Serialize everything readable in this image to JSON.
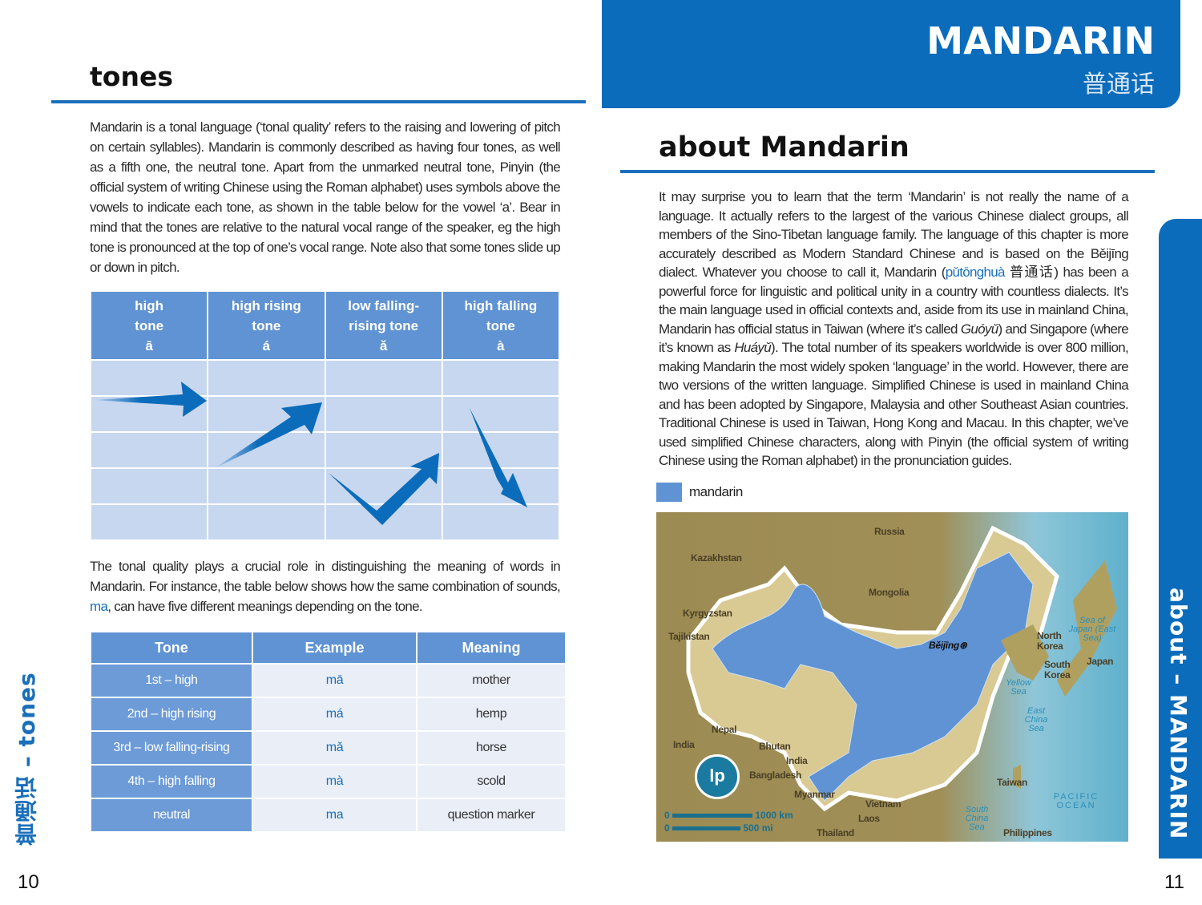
{
  "left_page": {
    "title": "tones",
    "intro": "Mandarin is a tonal language (‘tonal quality’ refers to the raising and lowering of pitch on certain syllables). Mandarin is commonly described as having four tones, as well as a fifth one, the neutral tone. Apart from the unmarked neutral tone, Pinyin (the official system of writing Chinese using the Roman alphabet) uses symbols above the vowels to indicate each tone, as shown in the table below for the vowel ‘a’. Bear in mind that the tones are relative to the natural vocal range of the speaker, eg the high tone is pronounced at the top of one’s vocal range. Note also that some tones slide up or down in pitch.",
    "tone_chart": {
      "headers": [
        {
          "name": "high tone",
          "mark": "ā"
        },
        {
          "name": "high rising tone",
          "mark": "á"
        },
        {
          "name": "low falling-rising tone",
          "mark": "ǎ"
        },
        {
          "name": "high falling tone",
          "mark": "à"
        }
      ],
      "arrow_color": "#0b6cbb"
    },
    "para2_before": "The tonal quality plays a crucial role in distinguishing the meaning of words in Mandarin. For instance, the table below shows how the same combination of sounds, ",
    "para2_ma": "ma",
    "para2_after": ", can have five different meanings depending on the tone.",
    "meaning_table": {
      "headers": [
        "Tone",
        "Example",
        "Meaning"
      ],
      "rows": [
        [
          "1st – high",
          "mā",
          "mother"
        ],
        [
          "2nd – high rising",
          "má",
          "hemp"
        ],
        [
          "3rd – low falling-rising",
          "mǎ",
          "horse"
        ],
        [
          "4th – high falling",
          "mà",
          "scold"
        ],
        [
          "neutral",
          "ma",
          "question marker"
        ]
      ]
    },
    "side_tab": "普通话 – tones",
    "page_number": "10"
  },
  "right_page": {
    "header_title": "MANDARIN",
    "header_chinese": "普通话",
    "title": "about Mandarin",
    "p1": "It may surprise you to learn that the term ‘Mandarin’ is not really the name of a language. It actually refers to the largest of the various Chinese dialect groups, all members of the Sino-Tibetan language family. The language of this chapter is more accurately described as Modern Standard Chinese and is based on the Běijīng dialect. Whatever you choose to call it, Mandarin (",
    "p1_pinyin": "pǔtōnghuà",
    "p1_chinese": " 普通话",
    "p2": ") has been a powerful force for linguistic and political unity in a country with countless dialects. It’s the main language used in official contexts and, aside from its use in mainland China, Mandarin has official status in Taiwan (where it’s called ",
    "p2_guoyu": "Guóyǔ",
    "p3": ") and Singapore (where it’s known as ",
    "p3_huayu": "Huáyǔ",
    "p4": "). The total number of its speakers worldwide is over 800 million, making Mandarin the most widely spoken ‘language’ in the world. However, there are two versions of the written language. Simplified Chinese is used in mainland China and has been adopted by Singapore, Malaysia and other Southeast Asian countries. Traditional Chinese is used in Taiwan, Hong Kong and Macau. In this chapter, we’ve used simplified Chinese characters, along with Pinyin (the official system of writing Chinese using the Roman alphabet) in the pronunciation guides.",
    "legend_label": "mandarin",
    "legend_color": "#5f93d3",
    "map": {
      "countries": [
        "Russia",
        "Kazakhstan",
        "Mongolia",
        "Kyrgyzstan",
        "Tajikistan",
        "North Korea",
        "South Korea",
        "Japan",
        "Nepal",
        "India",
        "Bhutan",
        "India",
        "Bangladesh",
        "Myanmar",
        "Vietnam",
        "Laos",
        "Thailand",
        "Taiwan",
        "Philippines"
      ],
      "capital": "Běijīng",
      "seas": [
        "Sea of Japan (East Sea)",
        "Yellow Sea",
        "East China Sea",
        "South China Sea",
        "PACIFIC OCEAN"
      ],
      "scale_km": "1000 km",
      "scale_mi": "500 mi",
      "scale_zero": "0",
      "logo": "lp"
    },
    "side_tab": "about – MANDARIN",
    "page_number": "11",
    "accent": "#0b6cbb"
  }
}
